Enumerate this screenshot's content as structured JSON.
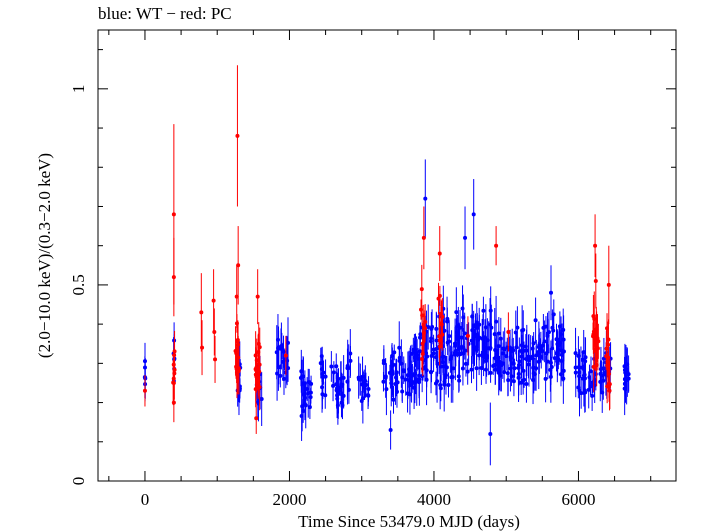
{
  "chart_data": {
    "type": "scatter",
    "title": "blue: WT − red: PC",
    "xlabel": "Time Since 53479.0 MJD (days)",
    "ylabel": "(2.0−10.0 keV)/(0.3−2.0 keV)",
    "xlim": [
      -650,
      7350
    ],
    "ylim": [
      0,
      1.15
    ],
    "x_ticks": [
      0,
      2000,
      4000,
      6000
    ],
    "x_tick_labels": [
      "0",
      "2000",
      "4000",
      "6000"
    ],
    "y_ticks": [
      0,
      0.5,
      1
    ],
    "y_tick_labels": [
      "0",
      "0.5",
      "1"
    ],
    "grid": false,
    "legend": "none",
    "series": [
      {
        "name": "WT",
        "color": "#0000ff",
        "windows": [
          {
            "t0": -5,
            "t1": 5,
            "mean": 0.28,
            "spread": 0.05,
            "n": 6
          },
          {
            "t0": 395,
            "t1": 410,
            "mean": 0.3,
            "spread": 0.06,
            "n": 6
          },
          {
            "t0": 1260,
            "t1": 1320,
            "mean": 0.26,
            "spread": 0.07,
            "n": 10
          },
          {
            "t0": 1540,
            "t1": 1620,
            "mean": 0.24,
            "spread": 0.06,
            "n": 12
          },
          {
            "t0": 1820,
            "t1": 1990,
            "mean": 0.3,
            "spread": 0.07,
            "n": 22
          },
          {
            "t0": 2150,
            "t1": 2300,
            "mean": 0.23,
            "spread": 0.07,
            "n": 20
          },
          {
            "t0": 2430,
            "t1": 2500,
            "mean": 0.27,
            "spread": 0.06,
            "n": 10
          },
          {
            "t0": 2570,
            "t1": 2750,
            "mean": 0.24,
            "spread": 0.07,
            "n": 22
          },
          {
            "t0": 2800,
            "t1": 2850,
            "mean": 0.28,
            "spread": 0.06,
            "n": 8
          },
          {
            "t0": 2950,
            "t1": 3100,
            "mean": 0.24,
            "spread": 0.05,
            "n": 16
          },
          {
            "t0": 3300,
            "t1": 3800,
            "mean": 0.28,
            "spread": 0.09,
            "n": 60
          },
          {
            "t0": 3800,
            "t1": 4300,
            "mean": 0.33,
            "spread": 0.12,
            "n": 70
          },
          {
            "t0": 4300,
            "t1": 4800,
            "mean": 0.34,
            "spread": 0.11,
            "n": 70
          },
          {
            "t0": 4800,
            "t1": 5300,
            "mean": 0.32,
            "spread": 0.1,
            "n": 65
          },
          {
            "t0": 5300,
            "t1": 5800,
            "mean": 0.33,
            "spread": 0.1,
            "n": 65
          },
          {
            "t0": 5950,
            "t1": 6250,
            "mean": 0.27,
            "spread": 0.07,
            "n": 35
          },
          {
            "t0": 6300,
            "t1": 6450,
            "mean": 0.28,
            "spread": 0.07,
            "n": 20
          },
          {
            "t0": 6630,
            "t1": 6700,
            "mean": 0.27,
            "spread": 0.05,
            "n": 16
          }
        ],
        "points": [
          {
            "x": 3880,
            "y": 0.72,
            "err": 0.1
          },
          {
            "x": 4430,
            "y": 0.62,
            "err": 0.08
          },
          {
            "x": 4550,
            "y": 0.68,
            "err": 0.09
          },
          {
            "x": 4780,
            "y": 0.12,
            "err": 0.08
          },
          {
            "x": 3400,
            "y": 0.13,
            "err": 0.05
          },
          {
            "x": 5620,
            "y": 0.48,
            "err": 0.07
          }
        ]
      },
      {
        "name": "PC",
        "color": "#ff0000",
        "windows": [
          {
            "t0": 390,
            "t1": 410,
            "mean": 0.28,
            "spread": 0.08,
            "n": 8
          },
          {
            "t0": 1250,
            "t1": 1300,
            "mean": 0.32,
            "spread": 0.09,
            "n": 14
          },
          {
            "t0": 1520,
            "t1": 1590,
            "mean": 0.3,
            "spread": 0.09,
            "n": 20
          },
          {
            "t0": 3820,
            "t1": 3880,
            "mean": 0.4,
            "spread": 0.1,
            "n": 10
          },
          {
            "t0": 4060,
            "t1": 4120,
            "mean": 0.42,
            "spread": 0.1,
            "n": 10
          },
          {
            "t0": 6200,
            "t1": 6280,
            "mean": 0.36,
            "spread": 0.1,
            "n": 20
          },
          {
            "t0": 6380,
            "t1": 6440,
            "mean": 0.32,
            "spread": 0.09,
            "n": 14
          }
        ],
        "points": [
          {
            "x": 0,
            "y": 0.23,
            "err": 0.04
          },
          {
            "x": 400,
            "y": 0.68,
            "err": 0.23
          },
          {
            "x": 400,
            "y": 0.52,
            "err": 0.1
          },
          {
            "x": 400,
            "y": 0.2,
            "err": 0.05
          },
          {
            "x": 780,
            "y": 0.43,
            "err": 0.1
          },
          {
            "x": 790,
            "y": 0.34,
            "err": 0.07
          },
          {
            "x": 950,
            "y": 0.46,
            "err": 0.08
          },
          {
            "x": 960,
            "y": 0.38,
            "err": 0.06
          },
          {
            "x": 970,
            "y": 0.31,
            "err": 0.06
          },
          {
            "x": 1280,
            "y": 0.88,
            "err": 0.18
          },
          {
            "x": 1290,
            "y": 0.55,
            "err": 0.1
          },
          {
            "x": 1270,
            "y": 0.47,
            "err": 0.08
          },
          {
            "x": 1560,
            "y": 0.47,
            "err": 0.07
          },
          {
            "x": 1540,
            "y": 0.16,
            "err": 0.04
          },
          {
            "x": 1950,
            "y": 0.32,
            "err": 0.05
          },
          {
            "x": 3860,
            "y": 0.62,
            "err": 0.08
          },
          {
            "x": 4080,
            "y": 0.58,
            "err": 0.07
          },
          {
            "x": 4470,
            "y": 0.37,
            "err": 0.05
          },
          {
            "x": 4860,
            "y": 0.6,
            "err": 0.05
          },
          {
            "x": 5030,
            "y": 0.38,
            "err": 0.05
          },
          {
            "x": 6230,
            "y": 0.6,
            "err": 0.08
          },
          {
            "x": 6240,
            "y": 0.51,
            "err": 0.07
          },
          {
            "x": 6420,
            "y": 0.5,
            "err": 0.1
          },
          {
            "x": 6430,
            "y": 0.23,
            "err": 0.05
          }
        ]
      }
    ]
  }
}
